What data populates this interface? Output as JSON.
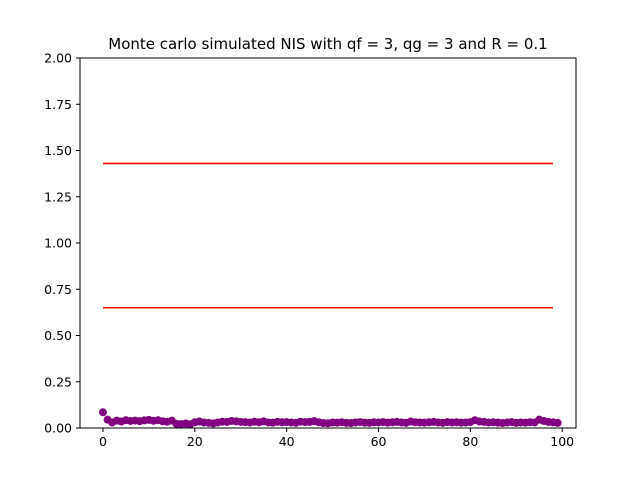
{
  "chart_data": {
    "type": "scatter",
    "title": "Monte carlo simulated NIS with qf = 3, qg = 3 and R = 0.1",
    "xlabel": "",
    "ylabel": "",
    "xlim": [
      -5,
      103
    ],
    "ylim": [
      0,
      2.0
    ],
    "x_ticks": [
      0,
      20,
      40,
      60,
      80,
      100
    ],
    "x_tick_labels": [
      "0",
      "20",
      "40",
      "60",
      "80",
      "100"
    ],
    "y_ticks": [
      0.0,
      0.25,
      0.5,
      0.75,
      1.0,
      1.25,
      1.5,
      1.75,
      2.0
    ],
    "y_tick_labels": [
      "0.00",
      "0.25",
      "0.50",
      "0.75",
      "1.00",
      "1.25",
      "1.50",
      "1.75",
      "2.00"
    ],
    "grid": false,
    "series": [
      {
        "type": "scatter",
        "color": "#800080",
        "x_start": 0,
        "values": [
          0.085,
          0.045,
          0.03,
          0.04,
          0.035,
          0.042,
          0.038,
          0.04,
          0.037,
          0.041,
          0.044,
          0.039,
          0.042,
          0.036,
          0.034,
          0.04,
          0.022,
          0.021,
          0.024,
          0.02,
          0.031,
          0.035,
          0.03,
          0.028,
          0.025,
          0.03,
          0.034,
          0.033,
          0.038,
          0.036,
          0.033,
          0.032,
          0.03,
          0.034,
          0.031,
          0.036,
          0.03,
          0.029,
          0.033,
          0.031,
          0.032,
          0.03,
          0.028,
          0.034,
          0.032,
          0.033,
          0.037,
          0.031,
          0.027,
          0.026,
          0.03,
          0.029,
          0.031,
          0.028,
          0.027,
          0.03,
          0.032,
          0.029,
          0.028,
          0.031,
          0.03,
          0.032,
          0.029,
          0.031,
          0.033,
          0.03,
          0.028,
          0.035,
          0.031,
          0.03,
          0.029,
          0.031,
          0.033,
          0.03,
          0.028,
          0.032,
          0.03,
          0.031,
          0.029,
          0.03,
          0.032,
          0.042,
          0.035,
          0.033,
          0.03,
          0.031,
          0.029,
          0.027,
          0.03,
          0.032,
          0.028,
          0.03,
          0.029,
          0.031,
          0.03,
          0.045,
          0.038,
          0.033,
          0.031,
          0.028
        ]
      }
    ],
    "hlines": [
      {
        "y": 1.43,
        "x_from": 0,
        "x_to": 98,
        "color": "#ff0000"
      },
      {
        "y": 0.65,
        "x_from": 0,
        "x_to": 98,
        "color": "#ff0000"
      }
    ]
  }
}
